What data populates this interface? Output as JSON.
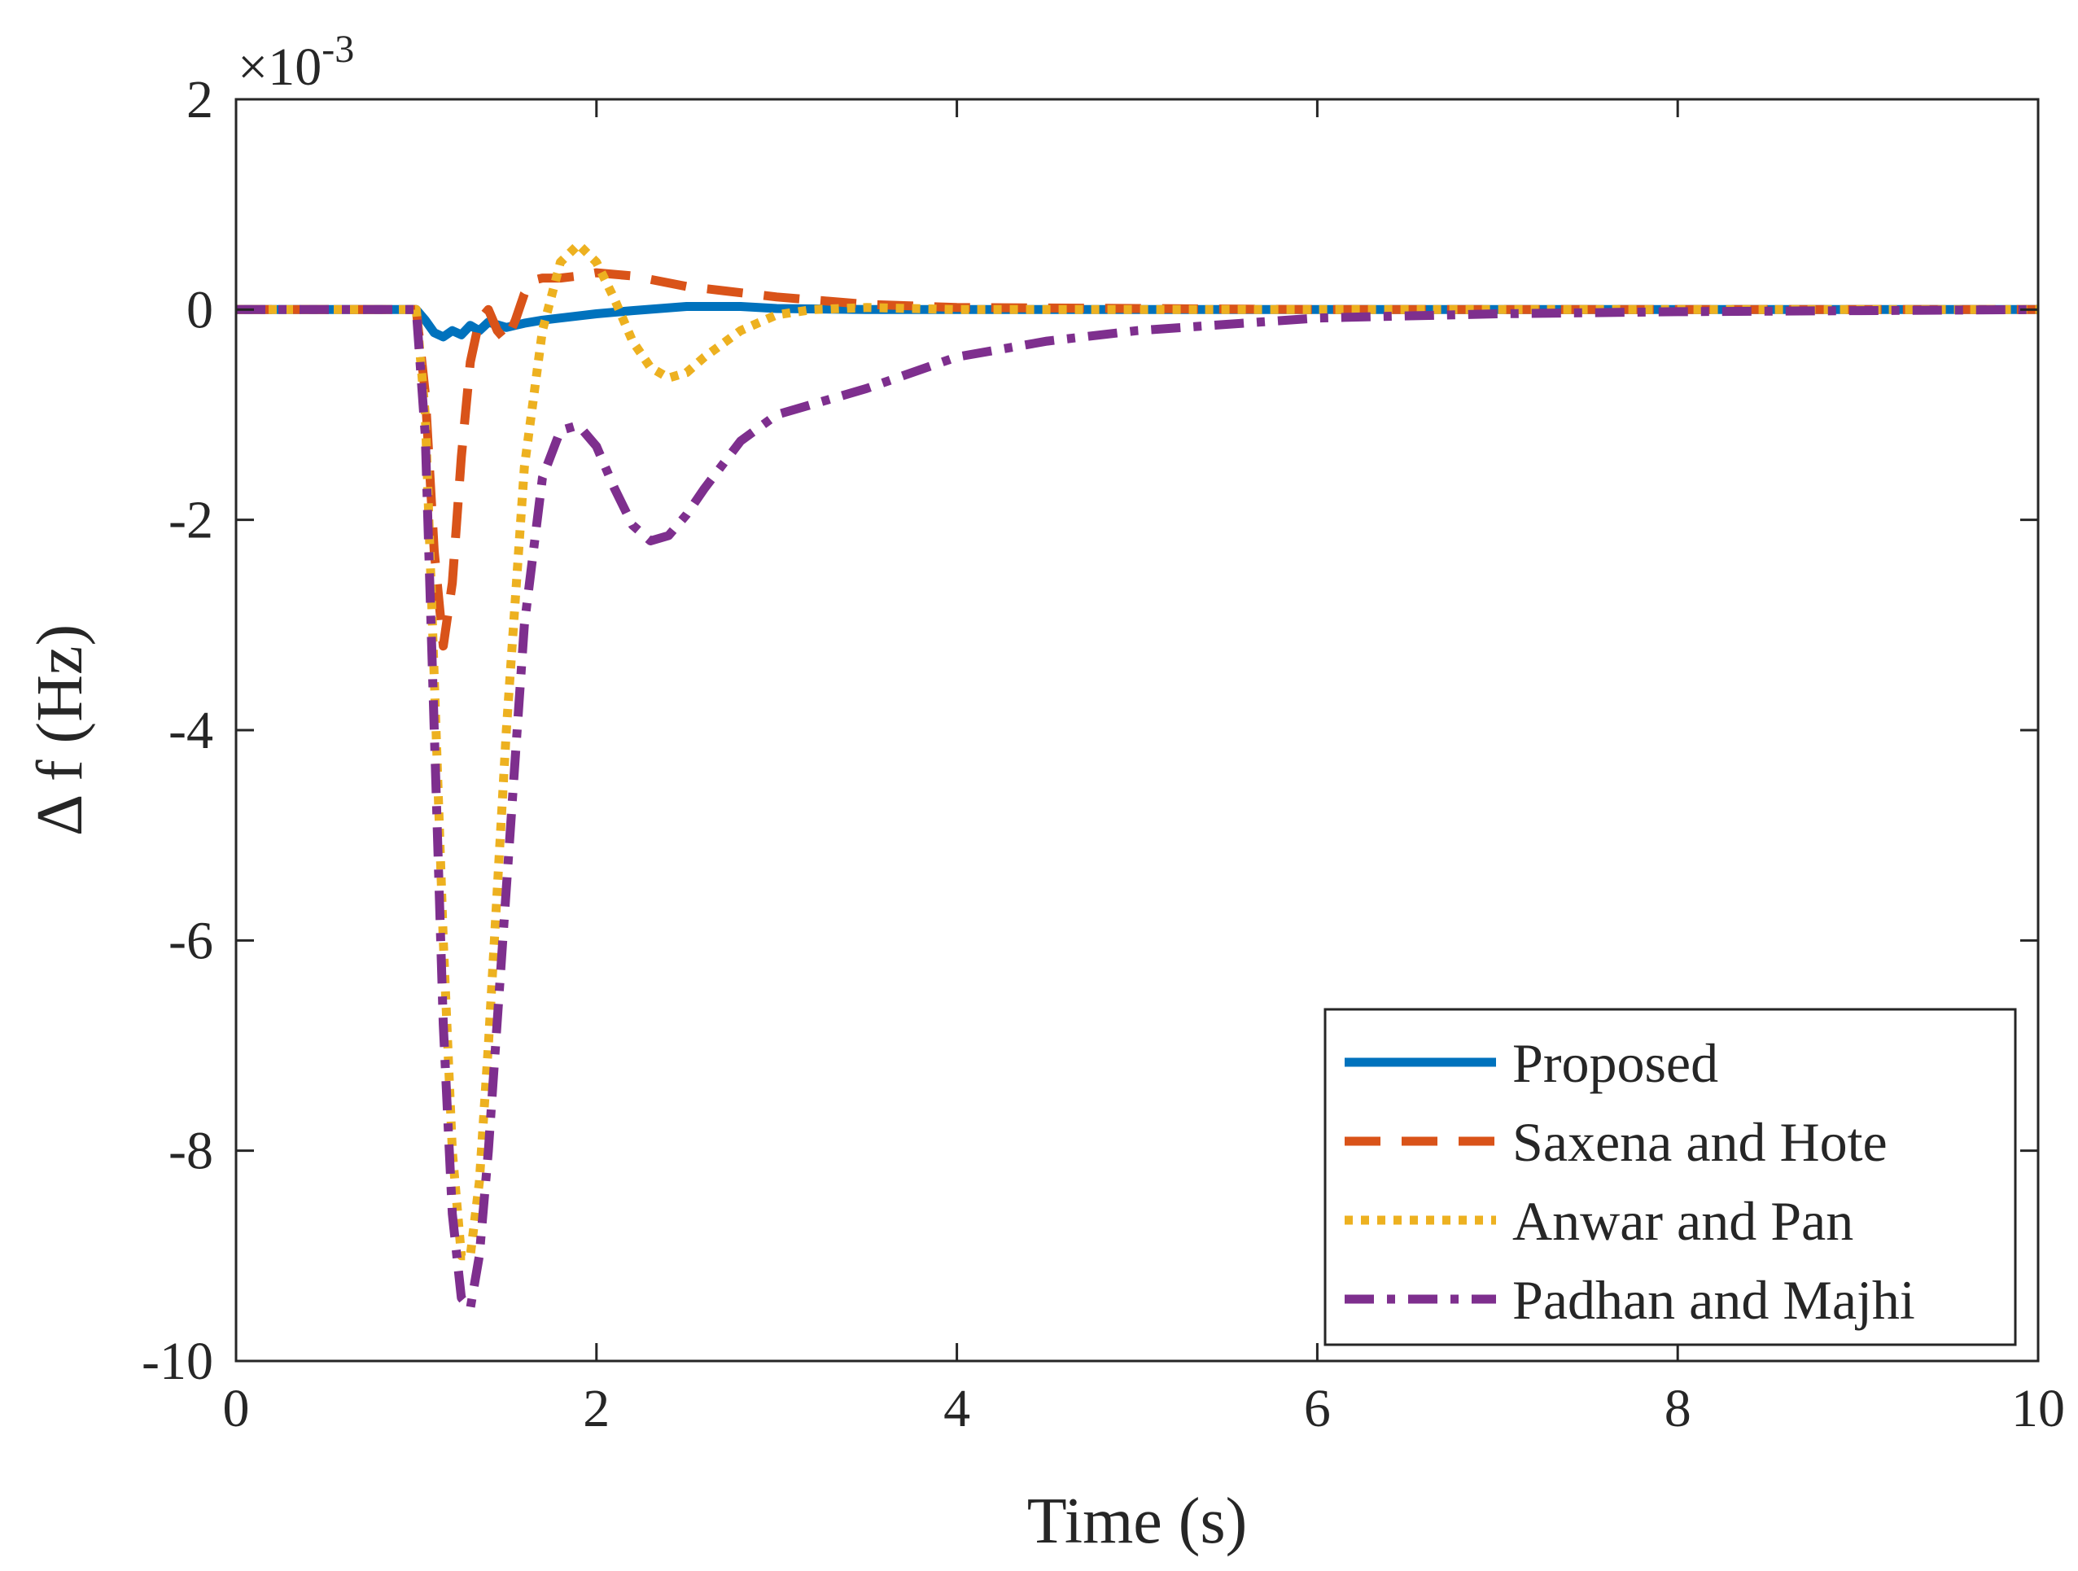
{
  "chart_data": {
    "type": "line",
    "title": "",
    "xlabel": "Time (s)",
    "ylabel": "Δ f (Hz)",
    "y_exponent_label": "×10",
    "y_exponent_power": "-3",
    "xlim": [
      0,
      10
    ],
    "ylim": [
      -10,
      2
    ],
    "y_unit_scale": "1e-3",
    "xticks": [
      "0",
      "2",
      "4",
      "6",
      "8",
      "10"
    ],
    "yticks": [
      "2",
      "0",
      "-2",
      "-4",
      "-6",
      "-8",
      "-10"
    ],
    "legend_position": "bottom-right",
    "grid": false,
    "series": [
      {
        "name": "Proposed",
        "color": "#0072BD",
        "style": "solid",
        "x": [
          0,
          1.0,
          1.05,
          1.1,
          1.15,
          1.2,
          1.25,
          1.3,
          1.35,
          1.4,
          1.5,
          1.6,
          1.7,
          1.8,
          2.0,
          2.2,
          2.5,
          2.8,
          3.0,
          3.5,
          4.0,
          5.0,
          6.0,
          8.0,
          10.0
        ],
        "y": [
          0,
          0,
          -0.1,
          -0.22,
          -0.26,
          -0.2,
          -0.24,
          -0.15,
          -0.2,
          -0.12,
          -0.17,
          -0.13,
          -0.1,
          -0.08,
          -0.04,
          -0.01,
          0.03,
          0.03,
          0.01,
          0.0,
          0.0,
          0.0,
          0.0,
          0.0,
          0.0
        ]
      },
      {
        "name": "Saxena and Hote",
        "color": "#D95319",
        "style": "dashed",
        "x": [
          0,
          1.0,
          1.05,
          1.1,
          1.15,
          1.2,
          1.25,
          1.3,
          1.35,
          1.4,
          1.45,
          1.5,
          1.55,
          1.6,
          1.65,
          1.7,
          1.8,
          1.9,
          2.0,
          2.2,
          2.5,
          3.0,
          3.5,
          4.0,
          5.0,
          6.0,
          8.0,
          10.0
        ],
        "y": [
          0,
          0,
          -0.8,
          -2.3,
          -3.2,
          -2.6,
          -1.4,
          -0.5,
          -0.1,
          0.0,
          -0.2,
          -0.3,
          -0.1,
          0.15,
          0.28,
          0.3,
          0.3,
          0.32,
          0.35,
          0.32,
          0.22,
          0.12,
          0.05,
          0.02,
          0.01,
          0.0,
          0.0,
          0.0
        ]
      },
      {
        "name": "Anwar and Pan",
        "color": "#EDB120",
        "style": "dotted",
        "x": [
          0,
          1.0,
          1.05,
          1.1,
          1.15,
          1.2,
          1.25,
          1.3,
          1.35,
          1.4,
          1.5,
          1.6,
          1.7,
          1.8,
          1.9,
          2.0,
          2.1,
          2.2,
          2.3,
          2.4,
          2.5,
          2.6,
          2.8,
          3.0,
          3.2,
          3.5,
          4.0,
          5.0,
          6.0,
          8.0,
          10.0
        ],
        "y": [
          0,
          0,
          -1.0,
          -3.5,
          -6.0,
          -8.0,
          -9.0,
          -9.0,
          -8.3,
          -7.0,
          -4.0,
          -1.5,
          -0.2,
          0.45,
          0.62,
          0.45,
          0.1,
          -0.3,
          -0.55,
          -0.65,
          -0.6,
          -0.45,
          -0.2,
          -0.05,
          0.0,
          0.02,
          0.0,
          0.0,
          0.0,
          0.0,
          0.0
        ]
      },
      {
        "name": "Padhan and Majhi",
        "color": "#7E2F8E",
        "style": "dashdot",
        "x": [
          0,
          1.0,
          1.05,
          1.1,
          1.15,
          1.2,
          1.25,
          1.3,
          1.35,
          1.4,
          1.5,
          1.6,
          1.7,
          1.8,
          1.9,
          2.0,
          2.1,
          2.2,
          2.3,
          2.4,
          2.5,
          2.6,
          2.8,
          3.0,
          3.2,
          3.5,
          4.0,
          4.5,
          5.0,
          6.0,
          7.0,
          8.0,
          10.0
        ],
        "y": [
          0,
          0,
          -1.2,
          -4.0,
          -6.8,
          -8.6,
          -9.4,
          -9.5,
          -9.0,
          -8.0,
          -5.5,
          -3.0,
          -1.6,
          -1.15,
          -1.1,
          -1.3,
          -1.7,
          -2.05,
          -2.2,
          -2.15,
          -1.95,
          -1.7,
          -1.25,
          -1.0,
          -0.9,
          -0.75,
          -0.45,
          -0.3,
          -0.2,
          -0.08,
          -0.04,
          -0.02,
          0.0
        ]
      }
    ]
  }
}
